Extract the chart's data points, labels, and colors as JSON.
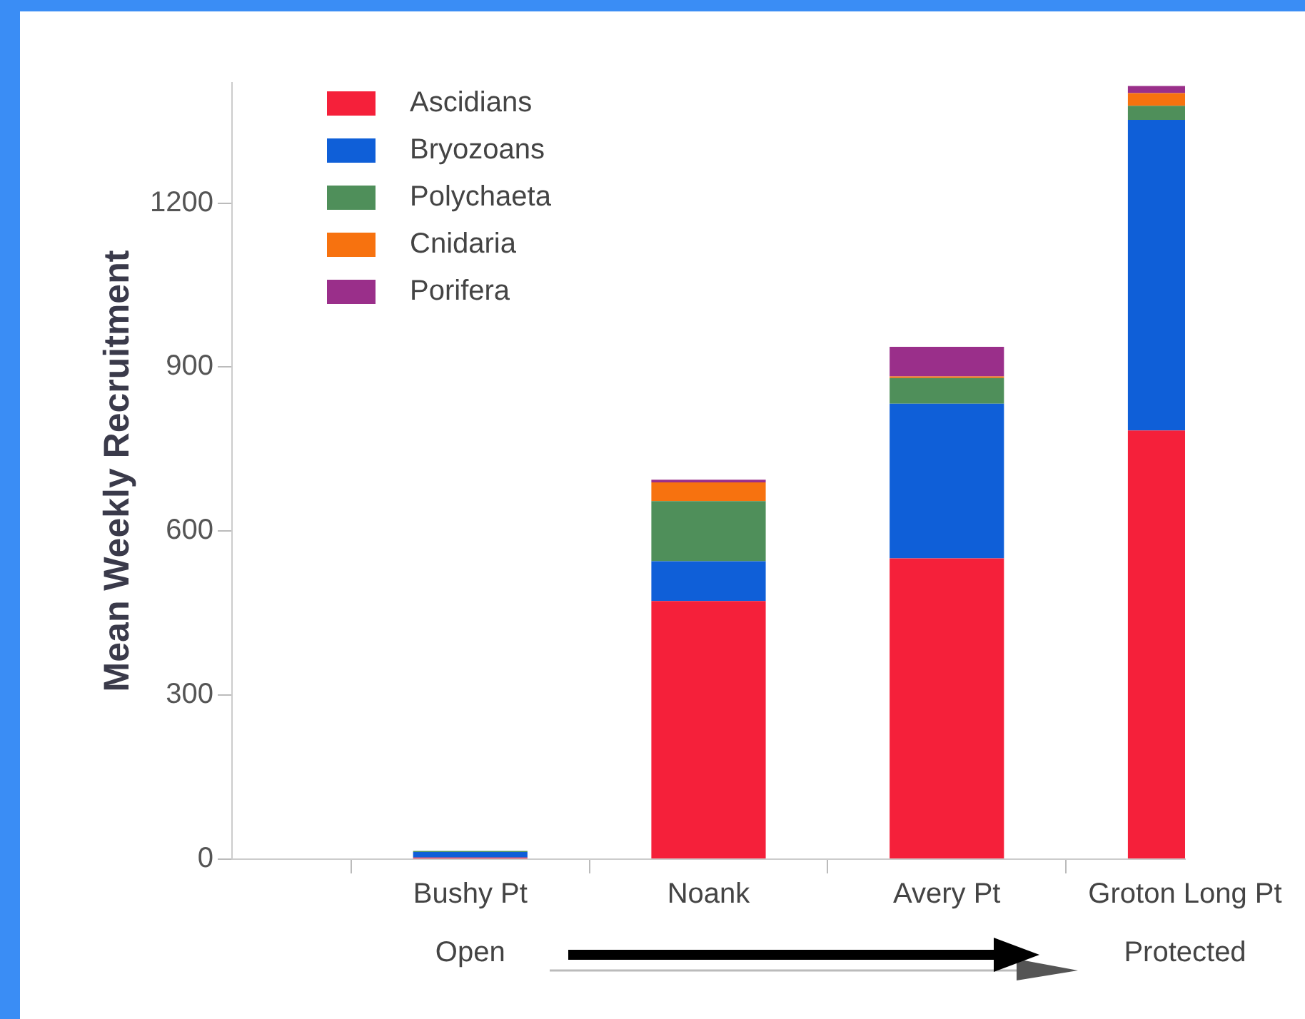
{
  "chart_data": {
    "type": "bar",
    "stacked": true,
    "ylabel": "Mean Weekly Recruitment",
    "categories": [
      null,
      "Bushy Pt",
      "Noank",
      "Avery Pt",
      "Groton Long Pt"
    ],
    "series": [
      {
        "name": "Ascidians",
        "color": "#f5203a",
        "values": [
          null,
          3,
          472,
          550,
          784
        ]
      },
      {
        "name": "Bryozoans",
        "color": "#0f5fd8",
        "values": [
          null,
          10,
          73,
          283,
          568
        ]
      },
      {
        "name": "Polychaeta",
        "color": "#4f8f5a",
        "values": [
          null,
          2,
          110,
          47,
          26
        ]
      },
      {
        "name": "Cnidaria",
        "color": "#f7720f",
        "values": [
          null,
          0,
          34,
          3,
          23
        ]
      },
      {
        "name": "Porifera",
        "color": "#9a2f8a",
        "values": [
          null,
          0,
          5,
          54,
          13
        ]
      }
    ],
    "ylim": [
      0,
      1420
    ],
    "yticks": [
      0,
      300,
      600,
      900,
      1200
    ],
    "grid": false,
    "legend": "top left",
    "annotations": [
      "Open",
      "Protected"
    ]
  }
}
